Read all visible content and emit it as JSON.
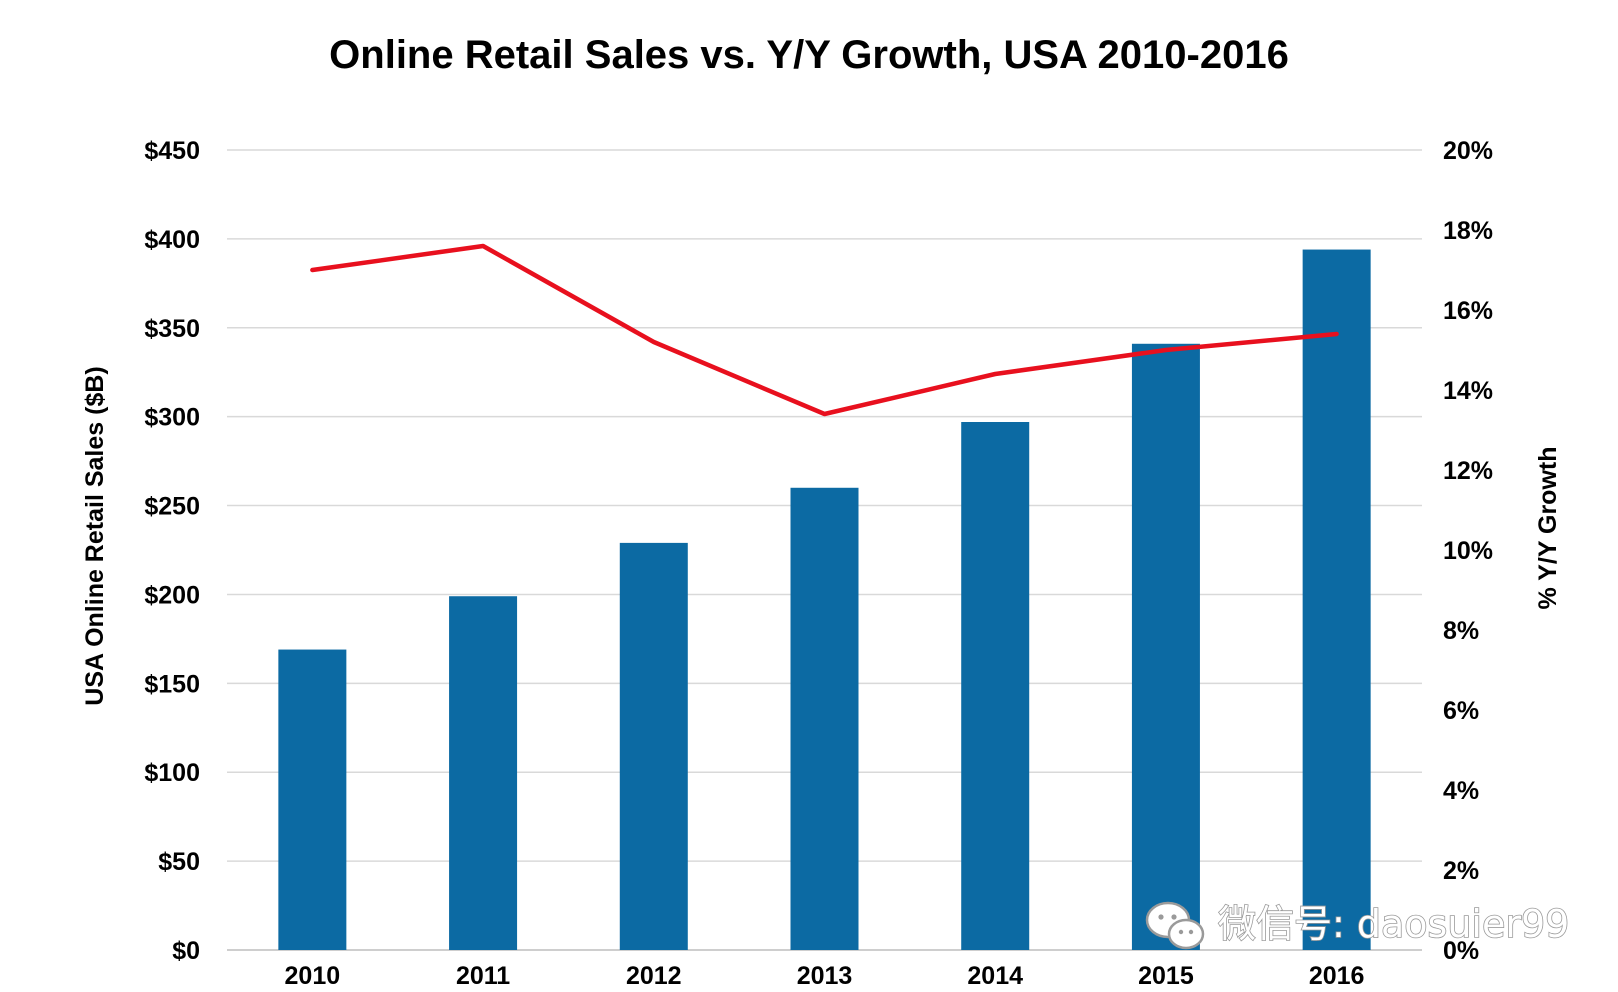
{
  "chart_data": {
    "type": "bar",
    "title": "Online Retail Sales vs. Y/Y Growth, USA 2010-2016",
    "categories": [
      "2010",
      "2011",
      "2012",
      "2013",
      "2014",
      "2015",
      "2016"
    ],
    "series": [
      {
        "type": "bar",
        "axis": "left",
        "values": [
          169,
          199,
          229,
          260,
          297,
          341,
          394
        ],
        "color": "#0c6aa3"
      },
      {
        "type": "line",
        "axis": "right",
        "values": [
          17.0,
          17.6,
          15.2,
          13.4,
          14.4,
          15.0,
          15.4
        ],
        "color": "#e8101e"
      }
    ],
    "ylabel": "USA Online Retail Sales ($B)",
    "y2label": "% Y/Y Growth",
    "ylim": [
      0,
      450
    ],
    "y2lim": [
      0,
      20
    ],
    "yticks": [
      "$0",
      "$50",
      "$100",
      "$150",
      "$200",
      "$250",
      "$300",
      "$350",
      "$400",
      "$450"
    ],
    "y2ticks": [
      "0%",
      "2%",
      "4%",
      "6%",
      "8%",
      "10%",
      "12%",
      "14%",
      "16%",
      "18%",
      "20%"
    ],
    "grid": true,
    "legend": "none"
  },
  "watermark": {
    "text": "微信号: daosuier99",
    "icon": "wechat-icon"
  }
}
